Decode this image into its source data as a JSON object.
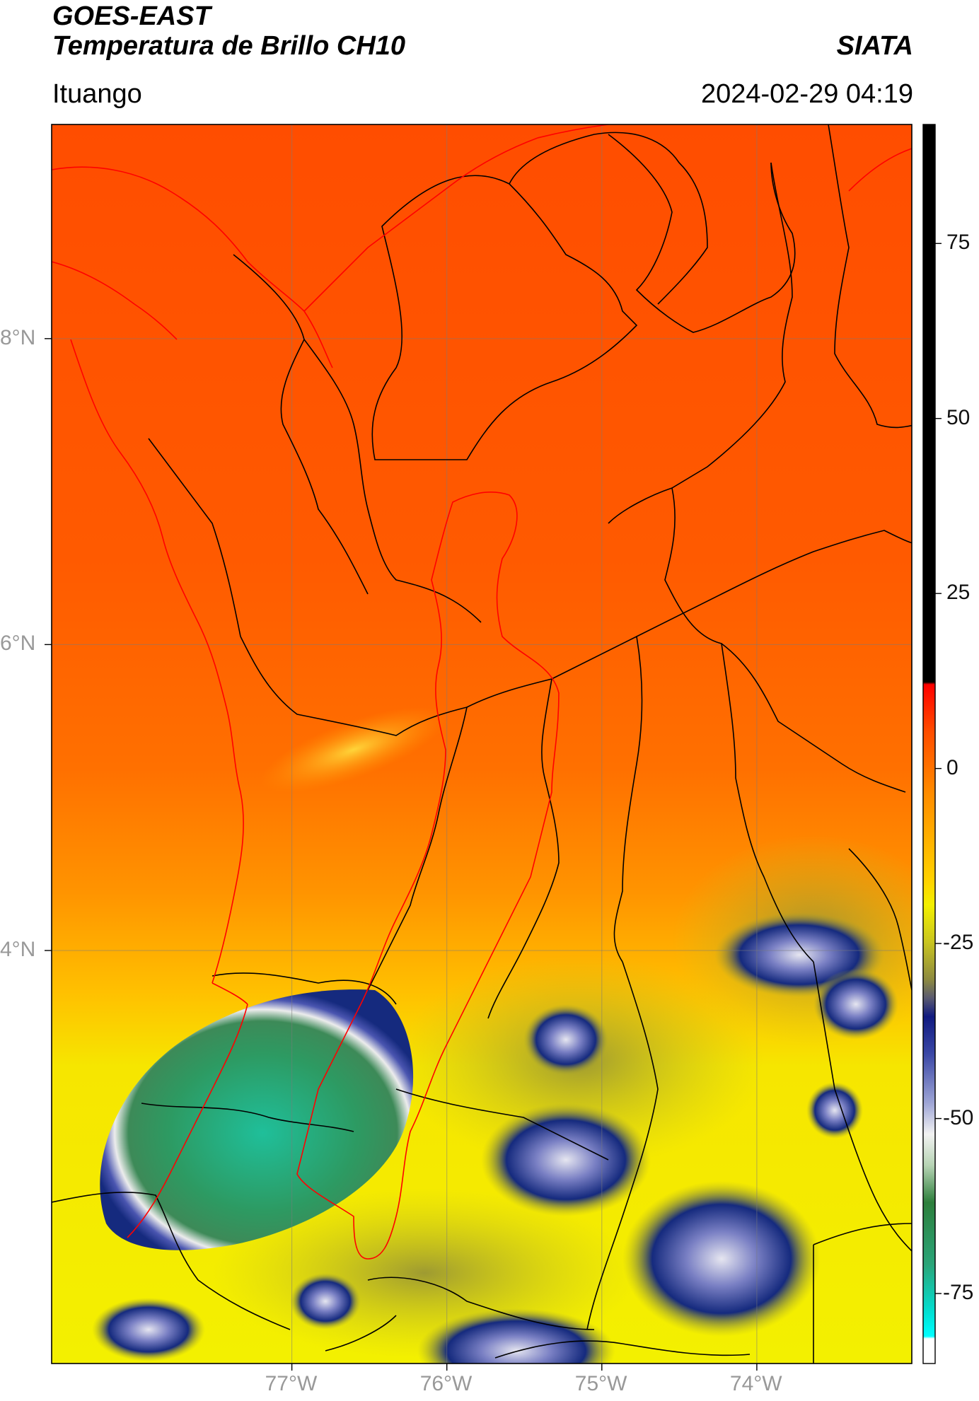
{
  "header": {
    "satellite": "GOES-EAST",
    "product": "Temperatura de Brillo CH10",
    "organization": "SIATA",
    "region": "Ituango",
    "timestamp": "2024-02-29 04:19"
  },
  "map": {
    "lon_range": [
      -78.55,
      -73.0
    ],
    "lat_range": [
      1.3,
      9.4
    ],
    "lon_ticks": [
      {
        "value": -77,
        "label": "77°W"
      },
      {
        "value": -76,
        "label": "76°W"
      },
      {
        "value": -75,
        "label": "75°W"
      },
      {
        "value": -74,
        "label": "74°W"
      }
    ],
    "lat_ticks": [
      {
        "value": 8,
        "label": "8°N"
      },
      {
        "value": 6,
        "label": "6°N"
      },
      {
        "value": 4,
        "label": "4°N"
      }
    ],
    "grid": true
  },
  "colorbar": {
    "range": [
      -85,
      92
    ],
    "ticks": [
      {
        "value": 75,
        "label": "75"
      },
      {
        "value": 50,
        "label": "50"
      },
      {
        "value": 25,
        "label": "25"
      },
      {
        "value": 0,
        "label": "0"
      },
      {
        "value": -25,
        "label": "-25"
      },
      {
        "value": -50,
        "label": "-50"
      },
      {
        "value": -75,
        "label": "-75"
      }
    ]
  },
  "colors": {
    "warm": "#ff5a00",
    "mid": "#ff9a00",
    "yellow": "#f3f000",
    "olive": "#a9a62c",
    "navy": "#152a7e",
    "cloud_white": "#ececec",
    "green": "#2d9a62",
    "teal": "#1fbf9a",
    "boundary": "#000000",
    "basin": "#ff0000"
  }
}
